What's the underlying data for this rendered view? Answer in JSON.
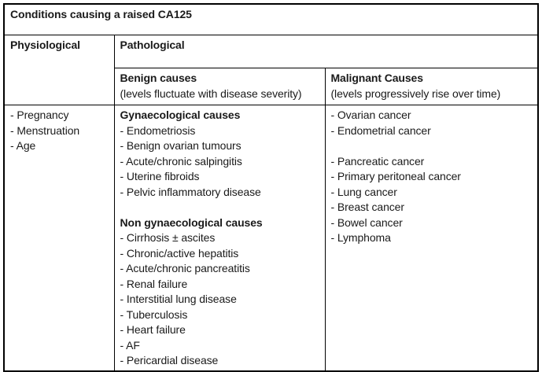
{
  "table": {
    "title": "Conditions causing a raised CA125",
    "physiological_header": "Physiological",
    "pathological_header": "Pathological",
    "benign": {
      "header": "Benign causes",
      "subheader": "(levels fluctuate with disease severity)"
    },
    "malignant": {
      "header": "Malignant Causes",
      "subheader": "(levels progressively rise over time)"
    },
    "physiological_items": [
      {
        "text": "- Pregnancy"
      },
      {
        "text": "- Menstruation"
      },
      {
        "text": "- Age"
      }
    ],
    "benign_lines": [
      {
        "text": "Gynaecological causes",
        "bold": true
      },
      {
        "text": "- Endometriosis"
      },
      {
        "text": "- Benign ovarian tumours"
      },
      {
        "text": "- Acute/chronic salpingitis"
      },
      {
        "text": "- Uterine fibroids"
      },
      {
        "text": "- Pelvic inflammatory disease"
      },
      {
        "text": ""
      },
      {
        "text": "Non gynaecological causes",
        "bold": true
      },
      {
        "text": "- Cirrhosis ± ascites"
      },
      {
        "text": "- Chronic/active hepatitis"
      },
      {
        "text": "- Acute/chronic pancreatitis"
      },
      {
        "text": "- Renal failure"
      },
      {
        "text": "- Interstitial lung disease"
      },
      {
        "text": "- Tuberculosis"
      },
      {
        "text": "- Heart failure"
      },
      {
        "text": "- AF"
      },
      {
        "text": "- Pericardial disease"
      }
    ],
    "malignant_lines": [
      {
        "text": "- Ovarian cancer"
      },
      {
        "text": "- Endometrial cancer"
      },
      {
        "text": ""
      },
      {
        "text": "- Pancreatic cancer"
      },
      {
        "text": "- Primary peritoneal cancer"
      },
      {
        "text": "- Lung cancer"
      },
      {
        "text": "- Breast cancer"
      },
      {
        "text": "- Bowel cancer"
      },
      {
        "text": "- Lymphoma"
      }
    ]
  }
}
